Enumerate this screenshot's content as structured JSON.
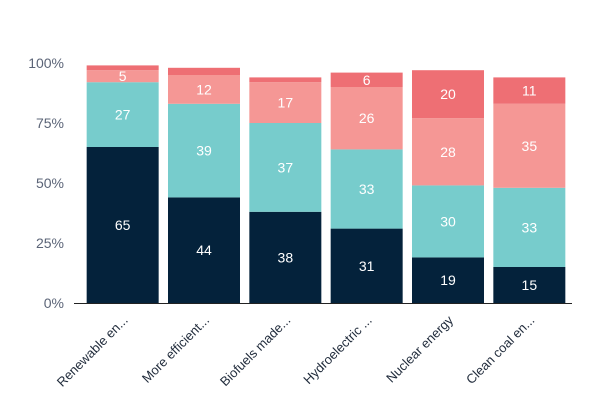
{
  "chart_data": {
    "type": "bar",
    "stacked": true,
    "categories": [
      "Renewable en...",
      "More efficient...",
      "Biofuels made...",
      "Hydroelectric ...",
      "Nuclear energy",
      "Clean coal en..."
    ],
    "series": [
      {
        "values": [
          65,
          44,
          38,
          31,
          19,
          15
        ],
        "color": "#04223b"
      },
      {
        "values": [
          27,
          39,
          37,
          33,
          30,
          33
        ],
        "color": "#77cccc"
      },
      {
        "values": [
          5,
          12,
          17,
          26,
          28,
          35
        ],
        "color": "#f59795"
      },
      {
        "values": [
          2,
          3,
          2,
          6,
          20,
          11
        ],
        "color": "#ee6f74"
      }
    ],
    "visible_value_labels": [
      [
        true,
        true,
        true,
        false
      ],
      [
        true,
        true,
        true,
        false
      ],
      [
        true,
        true,
        true,
        false
      ],
      [
        true,
        true,
        true,
        true
      ],
      [
        true,
        true,
        true,
        true
      ],
      [
        true,
        true,
        true,
        true
      ]
    ],
    "yticks": [
      "0%",
      "25%",
      "50%",
      "75%",
      "100%"
    ],
    "ylim": [
      0,
      100
    ],
    "grid": false,
    "legend": "none",
    "title": "",
    "xlabel": "",
    "ylabel": ""
  }
}
